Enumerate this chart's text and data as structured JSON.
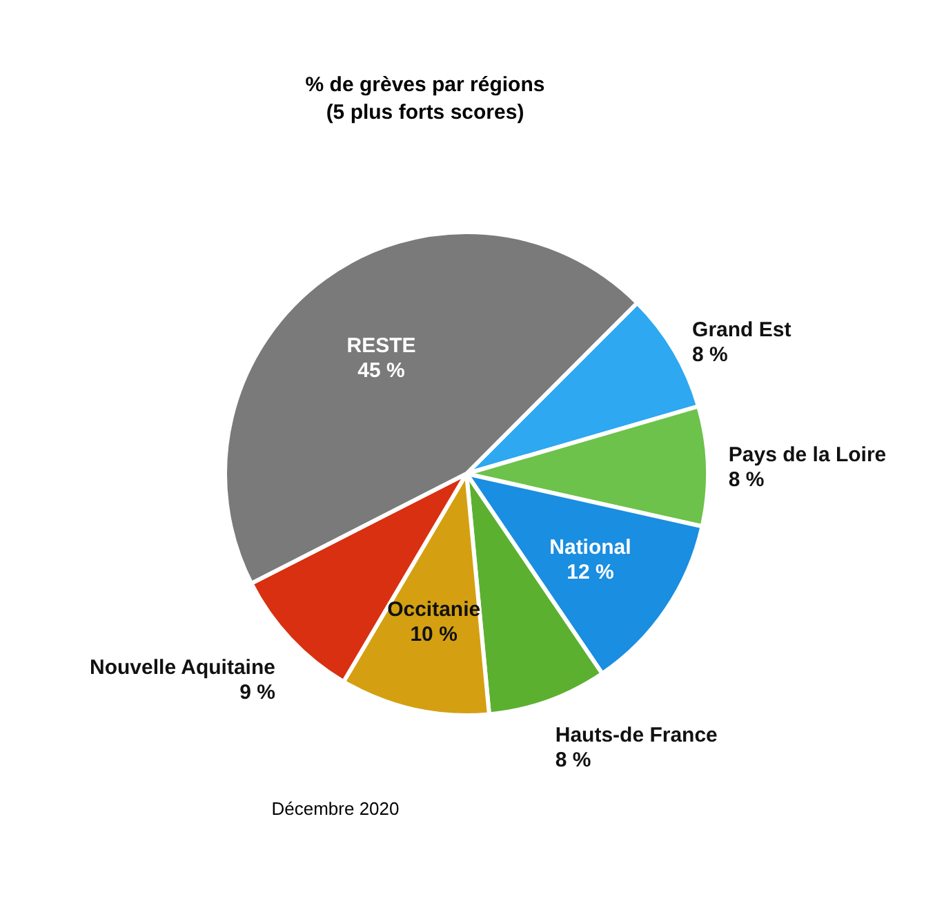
{
  "chart_data": {
    "type": "pie",
    "title": "% de grèves par régions",
    "subtitle": "(5 plus forts scores)",
    "categories": [
      "Grand Est",
      "Pays de la Loire",
      "National",
      "Hauts-de France",
      "Occitanie",
      "Nouvelle Aquitaine",
      "RESTE"
    ],
    "values": [
      8,
      8,
      12,
      8,
      10,
      9,
      45
    ],
    "value_labels": [
      "8 %",
      "8 %",
      "12 %",
      "8 %",
      "10 %",
      "9 %",
      "45 %"
    ],
    "colors": [
      "#2ea8f0",
      "#6cc24a",
      "#1a8ee0",
      "#5cb030",
      "#d4a012",
      "#d83010",
      "#7a7a7a"
    ],
    "legend": false,
    "annotations": [
      "Décembre 2020"
    ]
  }
}
